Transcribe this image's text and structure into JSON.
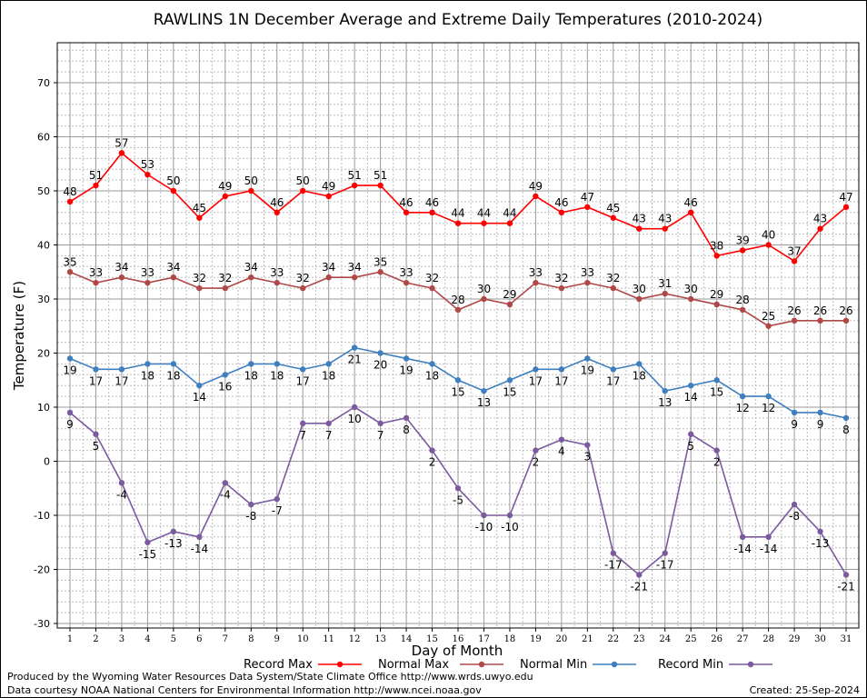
{
  "chart_data": {
    "type": "line",
    "title": "RAWLINS 1N December Average and Extreme Daily Temperatures (2010-2024)",
    "xlabel": "Day of Month",
    "ylabel": "Temperature (F)",
    "x": [
      1,
      2,
      3,
      4,
      5,
      6,
      7,
      8,
      9,
      10,
      11,
      12,
      13,
      14,
      15,
      16,
      17,
      18,
      19,
      20,
      21,
      22,
      23,
      24,
      25,
      26,
      27,
      28,
      29,
      30,
      31
    ],
    "xlim": [
      1,
      31
    ],
    "ylim": [
      -30,
      75
    ],
    "yticks": [
      -30,
      -20,
      -10,
      0,
      10,
      20,
      30,
      40,
      50,
      60,
      70
    ],
    "grid": true,
    "legend_placement": "bottom",
    "series": [
      {
        "name": "Record Max",
        "color": "#ff0000",
        "values": [
          48,
          51,
          57,
          53,
          50,
          45,
          49,
          50,
          46,
          50,
          49,
          51,
          51,
          46,
          46,
          44,
          44,
          44,
          49,
          46,
          47,
          45,
          43,
          43,
          46,
          38,
          39,
          40,
          37,
          43,
          47
        ]
      },
      {
        "name": "Normal Max",
        "color": "#b04848",
        "values": [
          35,
          33,
          34,
          33,
          34,
          32,
          32,
          34,
          33,
          32,
          34,
          34,
          35,
          33,
          32,
          28,
          30,
          29,
          33,
          32,
          33,
          32,
          30,
          31,
          30,
          29,
          28,
          25,
          26,
          26,
          26
        ]
      },
      {
        "name": "Normal Min",
        "color": "#3f7fbf",
        "values": [
          19,
          17,
          17,
          18,
          18,
          14,
          16,
          18,
          18,
          17,
          18,
          21,
          20,
          19,
          18,
          15,
          13,
          15,
          17,
          17,
          19,
          17,
          18,
          13,
          14,
          15,
          12,
          12,
          9,
          9,
          8
        ]
      },
      {
        "name": "Record Min",
        "color": "#7b5a9e",
        "values": [
          9,
          5,
          -4,
          -15,
          -13,
          -14,
          -4,
          -8,
          -7,
          7,
          7,
          10,
          7,
          8,
          2,
          -5,
          -10,
          -10,
          2,
          4,
          3,
          -17,
          -21,
          -17,
          5,
          2,
          -14,
          -14,
          -8,
          -13,
          -21
        ]
      }
    ]
  },
  "footer": {
    "produced_by": "Produced by the Wyoming Water Resources Data System/State Climate Office http://www.wrds.uwyo.edu",
    "courtesy": "Data courtesy NOAA National Centers for Environmental Information http://www.ncei.noaa.gov",
    "created": "Created:  25-Sep-2024"
  }
}
